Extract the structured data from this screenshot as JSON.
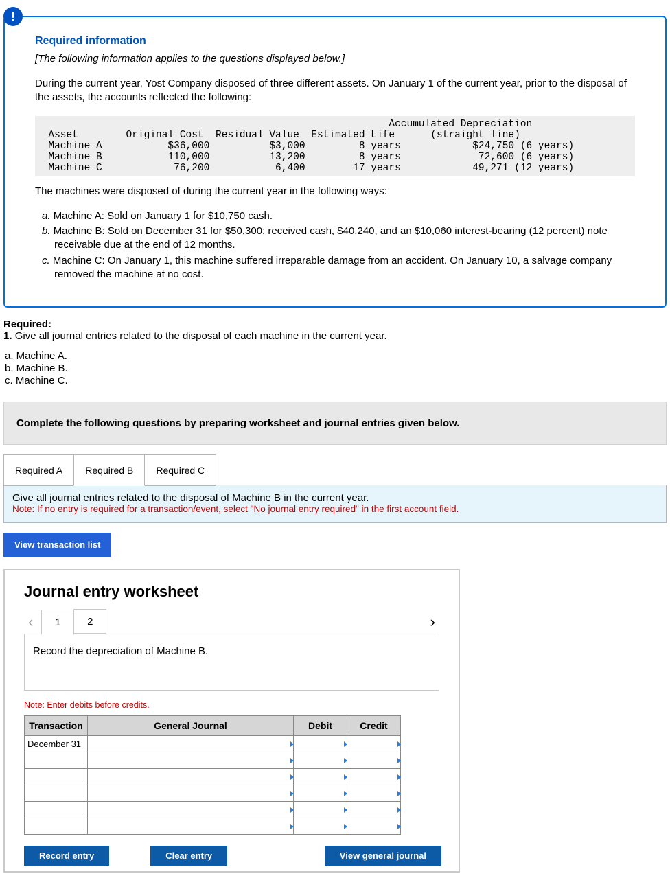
{
  "alert_icon_label": "!",
  "info": {
    "title": "Required information",
    "subtitle": "[The following information applies to the questions displayed below.]",
    "intro": "During the current year, Yost Company disposed of three different assets. On January 1 of the current year, prior to the disposal of the assets, the accounts reflected the following:",
    "table": {
      "headers": [
        "Asset",
        "Original Cost",
        "Residual Value",
        "Estimated Life",
        "Accumulated Depreciation (straight line)"
      ],
      "rows": [
        [
          "Machine A",
          "$36,000",
          "$3,000",
          "8 years",
          "$24,750 (6 years)"
        ],
        [
          "Machine B",
          "110,000",
          "13,200",
          "8 years",
          "72,600 (6 years)"
        ],
        [
          "Machine C",
          "76,200",
          "6,400",
          "17 years",
          "49,271 (12 years)"
        ]
      ]
    },
    "post_table": "The machines were disposed of during the current year in the following ways:",
    "disposals": [
      {
        "marker": "a.",
        "text": "Machine A: Sold on January 1 for $10,750 cash."
      },
      {
        "marker": "b.",
        "text": "Machine B: Sold on December 31 for $50,300; received cash, $40,240, and an $10,060 interest-bearing (12 percent) note receivable due at the end of 12 months."
      },
      {
        "marker": "c.",
        "text": "Machine C: On January 1, this machine suffered irreparable damage from an accident. On January 10, a salvage company removed the machine at no cost."
      }
    ]
  },
  "required": {
    "heading": "Required:",
    "item": "Give all journal entries related to the disposal of each machine in the current year.",
    "machines": [
      "a. Machine A.",
      "b. Machine B.",
      "c. Machine C."
    ]
  },
  "instruction": "Complete the following questions by preparing worksheet and journal entries given below.",
  "tabs": [
    "Required A",
    "Required B",
    "Required C"
  ],
  "active_tab": 1,
  "tab_content": {
    "line1": "Give all journal entries related to the disposal of Machine B in the current year.",
    "note": "Note: If no entry is required for a transaction/event, select \"No journal entry required\" in the first account field."
  },
  "view_trans_btn": "View transaction list",
  "worksheet": {
    "title": "Journal entry worksheet",
    "pages": [
      "1",
      "2"
    ],
    "active_page": 0,
    "entry_desc": "Record the depreciation of Machine B.",
    "note": "Note: Enter debits before credits.",
    "headers": [
      "Transaction",
      "General Journal",
      "Debit",
      "Credit"
    ],
    "first_trans": "December 31",
    "row_count": 6,
    "buttons": {
      "record": "Record entry",
      "clear": "Clear entry",
      "view": "View general journal"
    }
  }
}
